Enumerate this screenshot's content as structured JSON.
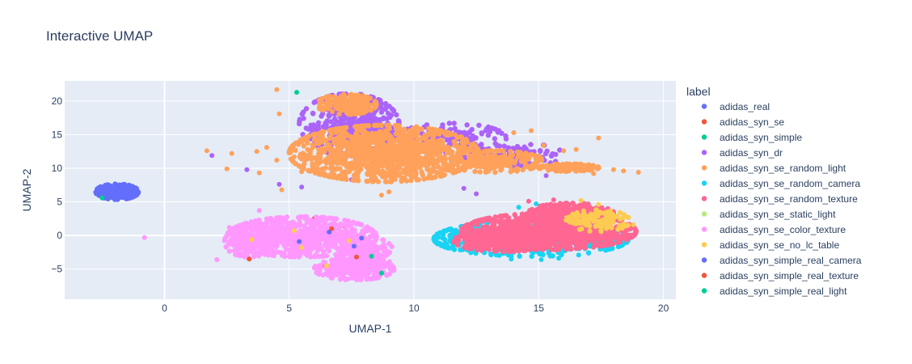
{
  "chart_data": {
    "type": "scatter",
    "title": "Interactive UMAP",
    "xlabel": "UMAP-1",
    "ylabel": "UMAP-2",
    "xlim": [
      -4,
      20.5
    ],
    "ylim": [
      -9.5,
      23
    ],
    "x_ticks": [
      0,
      5,
      10,
      15,
      20
    ],
    "y_ticks": [
      -5,
      0,
      5,
      10,
      15,
      20
    ],
    "grid": true,
    "zero_lines": true,
    "legend_title": "label",
    "legend_position": "right",
    "series": [
      {
        "name": "adidas_real",
        "color": "#636efa",
        "clusters": [
          {
            "cx": -1.9,
            "cy": 6.5,
            "rx": 0.85,
            "ry": 1.15,
            "n": 260
          }
        ],
        "points": [
          [
            6.2,
            -0.8
          ],
          [
            6.8,
            1.6
          ]
        ]
      },
      {
        "name": "adidas_syn_se",
        "color": "#EF553B",
        "clusters": [],
        "points": [
          [
            6.0,
            2.5
          ],
          [
            7.2,
            1.4
          ],
          [
            6.3,
            -4.6
          ],
          [
            7.8,
            -3.4
          ]
        ]
      },
      {
        "name": "adidas_syn_simple",
        "color": "#00cc96",
        "clusters": [],
        "points": [
          [
            -2.5,
            5.6
          ],
          [
            8.0,
            -3.2
          ],
          [
            8.6,
            -5.6
          ]
        ]
      },
      {
        "name": "adidas_syn_dr",
        "color": "#ab63fa",
        "clusters": [
          {
            "cx": 7.4,
            "cy": 16.5,
            "rx": 2.0,
            "ry": 4.6,
            "n": 420
          },
          {
            "cx": 11.5,
            "cy": 14.5,
            "rx": 2.2,
            "ry": 2.2,
            "n": 160
          },
          {
            "cx": 14.0,
            "cy": 12.0,
            "rx": 2.0,
            "ry": 1.8,
            "n": 120
          }
        ],
        "points": [
          [
            1.9,
            11.9
          ],
          [
            3.3,
            9.8
          ],
          [
            4.6,
            7.6
          ],
          [
            5.5,
            7.2
          ],
          [
            7.5,
            8.3
          ],
          [
            9.5,
            8.1
          ],
          [
            12.0,
            7.0
          ],
          [
            12.5,
            6.2
          ],
          [
            15.3,
            8.9
          ],
          [
            16.1,
            10.1
          ]
        ]
      },
      {
        "name": "adidas_syn_se_random_light",
        "color": "#FFA15A",
        "clusters": [
          {
            "cx": 8.8,
            "cy": 12.2,
            "rx": 3.8,
            "ry": 4.2,
            "n": 1200
          },
          {
            "cx": 13.2,
            "cy": 11.0,
            "rx": 2.0,
            "ry": 1.6,
            "n": 220
          },
          {
            "cx": 16.2,
            "cy": 10.1,
            "rx": 1.2,
            "ry": 0.55,
            "n": 180
          },
          {
            "cx": 7.3,
            "cy": 19.5,
            "rx": 1.2,
            "ry": 1.5,
            "n": 160
          }
        ],
        "points": [
          [
            1.7,
            12.6
          ],
          [
            2.7,
            12.2
          ],
          [
            2.5,
            9.9
          ],
          [
            3.8,
            9.3
          ],
          [
            4.5,
            21.7
          ],
          [
            4.6,
            18.1
          ],
          [
            4.5,
            11.2
          ],
          [
            4.7,
            6.8
          ],
          [
            5.2,
            11.7
          ],
          [
            5.5,
            9.5
          ],
          [
            3.7,
            12.5
          ],
          [
            4.1,
            13.1
          ],
          [
            10.7,
            9.6
          ],
          [
            11.3,
            14.9
          ],
          [
            14.0,
            15.3
          ],
          [
            14.7,
            15.6
          ],
          [
            15.2,
            13.4
          ],
          [
            16.5,
            12.8
          ],
          [
            17.4,
            14.5
          ],
          [
            18.0,
            9.8
          ],
          [
            18.4,
            9.6
          ],
          [
            19.0,
            9.4
          ],
          [
            17.2,
            9.2
          ],
          [
            15.5,
            10.0
          ],
          [
            14.5,
            12.1
          ],
          [
            8.7,
            6.0
          ],
          [
            9.0,
            6.5
          ],
          [
            16.0,
            12.6
          ]
        ]
      },
      {
        "name": "adidas_syn_se_random_camera",
        "color": "#19d3f3",
        "clusters": [
          {
            "cx": 14.7,
            "cy": -0.5,
            "rx": 3.9,
            "ry": 2.6,
            "n": 600
          }
        ],
        "points": [
          [
            11.2,
            0.6
          ],
          [
            11.5,
            -1.0
          ],
          [
            12.0,
            -1.8
          ],
          [
            13.3,
            -2.9
          ],
          [
            13.9,
            -3.5
          ],
          [
            15.1,
            -3.6
          ],
          [
            15.8,
            -3.4
          ],
          [
            16.6,
            -2.9
          ],
          [
            17.5,
            -2.0
          ],
          [
            14.9,
            4.7
          ],
          [
            14.2,
            4.2
          ],
          [
            8.3,
            -3.3
          ]
        ]
      },
      {
        "name": "adidas_syn_se_random_texture",
        "color": "#FF6692",
        "clusters": [
          {
            "cx": 15.4,
            "cy": 0.6,
            "rx": 3.5,
            "ry": 2.7,
            "n": 1000
          },
          {
            "cx": 16.3,
            "cy": 3.4,
            "rx": 1.7,
            "ry": 1.4,
            "n": 260
          },
          {
            "cx": 13.6,
            "cy": -0.8,
            "rx": 2.0,
            "ry": 1.6,
            "n": 320
          }
        ],
        "points": [
          [
            17.7,
            2.2
          ],
          [
            18.5,
            1.5
          ],
          [
            14.6,
            5.1
          ],
          [
            15.6,
            5.3
          ]
        ]
      },
      {
        "name": "adidas_syn_se_static_light",
        "color": "#B6E880",
        "clusters": [],
        "points": []
      },
      {
        "name": "adidas_syn_se_color_texture",
        "color": "#FF97FF",
        "clusters": [
          {
            "cx": 5.5,
            "cy": -0.2,
            "rx": 3.0,
            "ry": 3.0,
            "n": 700
          },
          {
            "cx": 7.6,
            "cy": -5.0,
            "rx": 1.6,
            "ry": 1.6,
            "n": 260
          },
          {
            "cx": 3.4,
            "cy": -1.0,
            "rx": 1.0,
            "ry": 2.2,
            "n": 180
          },
          {
            "cx": 8.1,
            "cy": -2.6,
            "rx": 1.1,
            "ry": 2.4,
            "n": 200
          }
        ],
        "points": [
          [
            -0.8,
            -0.3
          ],
          [
            3.8,
            3.7
          ],
          [
            2.6,
            1.2
          ],
          [
            2.1,
            -3.6
          ]
        ]
      },
      {
        "name": "adidas_syn_se_no_lc_table",
        "color": "#FECB52",
        "clusters": [
          {
            "cx": 17.4,
            "cy": 2.2,
            "rx": 1.3,
            "ry": 1.6,
            "n": 120
          }
        ],
        "points": [
          [
            3.5,
            -0.6
          ],
          [
            5.2,
            0.7
          ],
          [
            5.5,
            -1.8
          ],
          [
            6.5,
            -4.5
          ],
          [
            7.4,
            -0.8
          ],
          [
            18.8,
            1.6
          ],
          [
            17.4,
            4.6
          ],
          [
            16.7,
            5.2
          ]
        ]
      },
      {
        "name": "adidas_syn_simple_real_camera",
        "color": "#636efa",
        "clusters": [],
        "points": [
          [
            7.6,
            -1.6
          ],
          [
            6.6,
            0.5
          ],
          [
            7.9,
            -0.4
          ],
          [
            5.4,
            -0.9
          ]
        ]
      },
      {
        "name": "adidas_syn_simple_real_texture",
        "color": "#EF553B",
        "clusters": [],
        "points": [
          [
            3.4,
            -3.5
          ],
          [
            7.7,
            -3.2
          ],
          [
            6.7,
            1.0
          ]
        ]
      },
      {
        "name": "adidas_syn_simple_real_light",
        "color": "#00cc96",
        "clusters": [],
        "points": [
          [
            5.3,
            21.3
          ],
          [
            8.3,
            -3.1
          ],
          [
            8.7,
            -5.6
          ]
        ]
      }
    ]
  }
}
